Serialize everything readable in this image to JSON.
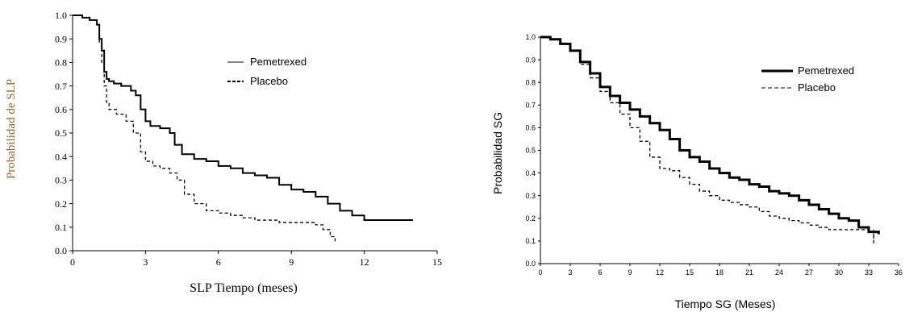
{
  "chart_data": [
    {
      "type": "line",
      "step": true,
      "xlabel": "SLP Tiempo (meses)",
      "ylabel": "Probabilidad de SLP",
      "xlim": [
        0,
        15
      ],
      "ylim": [
        0,
        1.0
      ],
      "xticks": [
        "0",
        "3",
        "6",
        "9",
        "12",
        "15"
      ],
      "yticks": [
        "0.0",
        "0.1",
        "0.2",
        "0.3",
        "0.4",
        "0.5",
        "0.6",
        "0.7",
        "0.8",
        "0.9",
        "1.0"
      ],
      "grid": false,
      "legend_position": "top-right",
      "legend": [
        "Pemetrexed",
        "Placebo"
      ],
      "series": [
        {
          "name": "Pemetrexed",
          "style": "solid-thin",
          "color": "#000000",
          "x": [
            0,
            0.4,
            0.7,
            1.0,
            1.1,
            1.2,
            1.3,
            1.4,
            1.5,
            1.7,
            2.0,
            2.4,
            2.6,
            2.8,
            3.0,
            3.2,
            3.6,
            4.0,
            4.2,
            4.5,
            5.0,
            5.5,
            6.0,
            6.5,
            7.0,
            7.5,
            8.0,
            8.5,
            9.0,
            9.5,
            10.0,
            10.5,
            11.0,
            11.5,
            12.0,
            12.5,
            13.0,
            13.5,
            14.0
          ],
          "y": [
            1.0,
            0.99,
            0.98,
            0.96,
            0.9,
            0.85,
            0.76,
            0.73,
            0.72,
            0.71,
            0.7,
            0.68,
            0.66,
            0.6,
            0.55,
            0.53,
            0.52,
            0.5,
            0.45,
            0.41,
            0.39,
            0.38,
            0.36,
            0.35,
            0.33,
            0.32,
            0.31,
            0.28,
            0.26,
            0.25,
            0.23,
            0.2,
            0.17,
            0.15,
            0.13,
            0.13,
            0.13,
            0.13,
            0.13
          ]
        },
        {
          "name": "Placebo",
          "style": "dashed",
          "color": "#000000",
          "x": [
            0,
            0.4,
            0.7,
            1.0,
            1.1,
            1.2,
            1.3,
            1.4,
            1.5,
            1.8,
            2.2,
            2.5,
            2.8,
            3.0,
            3.3,
            3.6,
            4.0,
            4.3,
            4.6,
            5.0,
            5.5,
            6.0,
            6.5,
            7.0,
            7.5,
            8.0,
            8.5,
            9.0,
            9.5,
            10.0,
            10.3,
            10.6,
            10.8
          ],
          "y": [
            1.0,
            0.99,
            0.98,
            0.96,
            0.88,
            0.8,
            0.7,
            0.63,
            0.6,
            0.58,
            0.55,
            0.5,
            0.42,
            0.38,
            0.36,
            0.35,
            0.33,
            0.3,
            0.24,
            0.2,
            0.17,
            0.16,
            0.15,
            0.14,
            0.13,
            0.13,
            0.12,
            0.12,
            0.12,
            0.11,
            0.09,
            0.06,
            0.04
          ]
        }
      ]
    },
    {
      "type": "line",
      "step": true,
      "xlabel": "Tiempo SG (Meses)",
      "ylabel": "Probabilidad SG",
      "xlim": [
        0,
        36
      ],
      "ylim": [
        0,
        1.0
      ],
      "xticks": [
        "0",
        "3",
        "6",
        "9",
        "12",
        "15",
        "18",
        "21",
        "24",
        "27",
        "30",
        "33",
        "36"
      ],
      "yticks": [
        "0.0",
        "0.1",
        "0.2",
        "0.3",
        "0.4",
        "0.5",
        "0.6",
        "0.7",
        "0.8",
        "0.9",
        "1.0"
      ],
      "grid": false,
      "legend_position": "top-right",
      "legend": [
        "Pemetrexed",
        "Placebo"
      ],
      "series": [
        {
          "name": "Pemetrexed",
          "style": "solid-thick",
          "color": "#000000",
          "x": [
            0,
            1,
            2,
            3,
            4,
            5,
            6,
            7,
            8,
            9,
            10,
            11,
            12,
            13,
            14,
            15,
            16,
            17,
            18,
            19,
            20,
            21,
            22,
            23,
            24,
            25,
            26,
            27,
            28,
            29,
            30,
            31,
            32,
            33,
            34
          ],
          "y": [
            1.0,
            0.99,
            0.97,
            0.94,
            0.89,
            0.84,
            0.78,
            0.74,
            0.71,
            0.68,
            0.65,
            0.62,
            0.59,
            0.55,
            0.5,
            0.47,
            0.45,
            0.42,
            0.4,
            0.38,
            0.37,
            0.35,
            0.34,
            0.32,
            0.31,
            0.3,
            0.28,
            0.26,
            0.24,
            0.22,
            0.2,
            0.19,
            0.16,
            0.14,
            0.13
          ]
        },
        {
          "name": "Placebo",
          "style": "dashed",
          "color": "#000000",
          "x": [
            0,
            1,
            2,
            3,
            4,
            5,
            6,
            7,
            8,
            9,
            10,
            11,
            12,
            13,
            14,
            15,
            16,
            17,
            18,
            19,
            20,
            21,
            22,
            23,
            24,
            25,
            26,
            27,
            28,
            29,
            30,
            31,
            32,
            33,
            33.5
          ],
          "y": [
            1.0,
            0.99,
            0.97,
            0.94,
            0.88,
            0.82,
            0.76,
            0.71,
            0.66,
            0.6,
            0.54,
            0.47,
            0.42,
            0.41,
            0.38,
            0.35,
            0.32,
            0.3,
            0.28,
            0.27,
            0.26,
            0.25,
            0.23,
            0.21,
            0.2,
            0.19,
            0.18,
            0.17,
            0.16,
            0.15,
            0.15,
            0.15,
            0.15,
            0.14,
            0.08
          ]
        }
      ]
    }
  ]
}
